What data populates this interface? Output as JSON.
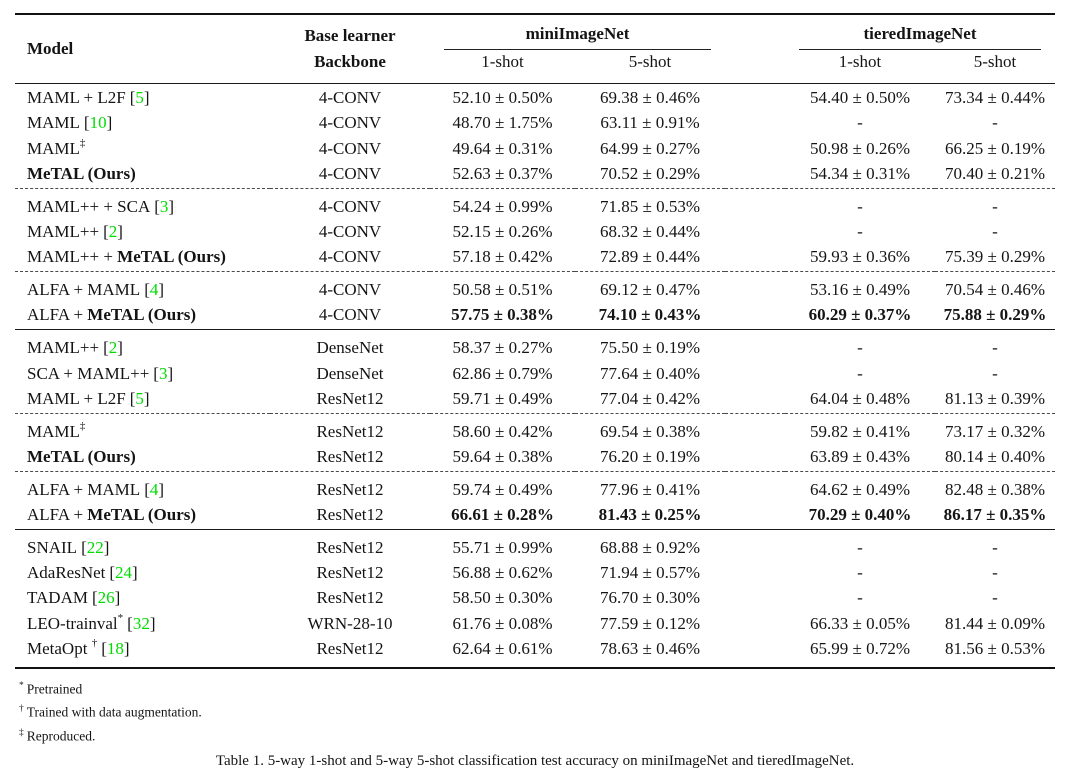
{
  "accent": {
    "citation_green": "#00dc00",
    "rule_color": "#111111"
  },
  "header": {
    "model": "Model",
    "base_learner_top": "Base learner",
    "base_learner_bottom": "Backbone",
    "groups": [
      {
        "label": "miniImageNet",
        "subcols": [
          "1-shot",
          "5-shot"
        ]
      },
      {
        "label": "tieredImageNet",
        "subcols": [
          "1-shot",
          "5-shot"
        ]
      }
    ]
  },
  "sections": [
    {
      "blocks": [
        {
          "rows": [
            {
              "plain": "MAML + L2F",
              "bold": "",
              "sup": "",
              "cite": "5",
              "backbone": "4-CONV",
              "values": [
                "52.10 ± 0.50%",
                "69.38 ± 0.46%",
                "54.40 ± 0.50%",
                "73.34 ± 0.44%"
              ],
              "bold_values": false
            },
            {
              "plain": "MAML",
              "bold": "",
              "sup": "",
              "cite": "10",
              "backbone": "4-CONV",
              "values": [
                "48.70 ± 1.75%",
                "63.11 ± 0.91%",
                "-",
                "-"
              ],
              "bold_values": false
            },
            {
              "plain": "MAML",
              "bold": "",
              "sup": "‡",
              "cite": "",
              "backbone": "4-CONV",
              "values": [
                "49.64 ± 0.31%",
                "64.99 ± 0.27%",
                "50.98 ± 0.26%",
                "66.25 ± 0.19%"
              ],
              "bold_values": false
            },
            {
              "plain": "",
              "bold": "MeTAL (Ours)",
              "sup": "",
              "cite": "",
              "backbone": "4-CONV",
              "values": [
                "52.63 ± 0.37%",
                "70.52 ± 0.29%",
                "54.34 ± 0.31%",
                "70.40 ± 0.21%"
              ],
              "bold_values": false
            }
          ]
        },
        {
          "rows": [
            {
              "plain": "MAML++ + SCA",
              "bold": "",
              "sup": "",
              "cite": "3",
              "backbone": "4-CONV",
              "values": [
                "54.24 ± 0.99%",
                "71.85 ± 0.53%",
                "-",
                "-"
              ],
              "bold_values": false
            },
            {
              "plain": "MAML++",
              "bold": "",
              "sup": "",
              "cite": "2",
              "backbone": "4-CONV",
              "values": [
                "52.15 ± 0.26%",
                "68.32 ± 0.44%",
                "-",
                "-"
              ],
              "bold_values": false
            },
            {
              "plain": "MAML++ + ",
              "bold": "MeTAL (Ours)",
              "sup": "",
              "cite": "",
              "backbone": "4-CONV",
              "values": [
                "57.18 ± 0.42%",
                "72.89 ± 0.44%",
                "59.93 ± 0.36%",
                "75.39 ± 0.29%"
              ],
              "bold_values": false
            }
          ]
        },
        {
          "rows": [
            {
              "plain": "ALFA + MAML",
              "bold": "",
              "sup": "",
              "cite": "4",
              "backbone": "4-CONV",
              "values": [
                "50.58 ± 0.51%",
                "69.12 ± 0.47%",
                "53.16 ± 0.49%",
                "70.54 ± 0.46%"
              ],
              "bold_values": false
            },
            {
              "plain": "ALFA + ",
              "bold": "MeTAL (Ours)",
              "sup": "",
              "cite": "",
              "backbone": "4-CONV",
              "values": [
                "57.75 ± 0.38%",
                "74.10 ± 0.43%",
                "60.29 ± 0.37%",
                "75.88 ± 0.29%"
              ],
              "bold_values": true
            }
          ]
        }
      ]
    },
    {
      "blocks": [
        {
          "rows": [
            {
              "plain": "MAML++",
              "bold": "",
              "sup": "",
              "cite": "2",
              "backbone": "DenseNet",
              "values": [
                "58.37 ± 0.27%",
                "75.50 ± 0.19%",
                "-",
                "-"
              ],
              "bold_values": false
            },
            {
              "plain": "SCA + MAML++",
              "bold": "",
              "sup": "",
              "cite": "3",
              "backbone": "DenseNet",
              "values": [
                "62.86 ± 0.79%",
                "77.64 ± 0.40%",
                "-",
                "-"
              ],
              "bold_values": false
            },
            {
              "plain": "MAML + L2F",
              "bold": "",
              "sup": "",
              "cite": "5",
              "backbone": "ResNet12",
              "values": [
                "59.71 ± 0.49%",
                "77.04 ± 0.42%",
                "64.04 ± 0.48%",
                "81.13 ± 0.39%"
              ],
              "bold_values": false
            }
          ]
        },
        {
          "rows": [
            {
              "plain": "MAML",
              "bold": "",
              "sup": "‡",
              "cite": "",
              "backbone": "ResNet12",
              "values": [
                "58.60 ± 0.42%",
                "69.54 ± 0.38%",
                "59.82 ± 0.41%",
                "73.17 ± 0.32%"
              ],
              "bold_values": false
            },
            {
              "plain": "",
              "bold": "MeTAL (Ours)",
              "sup": "",
              "cite": "",
              "backbone": "ResNet12",
              "values": [
                "59.64 ± 0.38%",
                "76.20 ± 0.19%",
                "63.89 ± 0.43%",
                "80.14 ± 0.40%"
              ],
              "bold_values": false
            }
          ]
        },
        {
          "rows": [
            {
              "plain": "ALFA + MAML",
              "bold": "",
              "sup": "",
              "cite": "4",
              "backbone": "ResNet12",
              "values": [
                "59.74 ± 0.49%",
                "77.96 ± 0.41%",
                "64.62 ± 0.49%",
                "82.48 ± 0.38%"
              ],
              "bold_values": false
            },
            {
              "plain": "ALFA + ",
              "bold": "MeTAL (Ours)",
              "sup": "",
              "cite": "",
              "backbone": "ResNet12",
              "values": [
                "66.61 ± 0.28%",
                "81.43 ± 0.25%",
                "70.29 ± 0.40%",
                "86.17 ± 0.35%"
              ],
              "bold_values": true
            }
          ]
        }
      ]
    },
    {
      "blocks": [
        {
          "rows": [
            {
              "plain": "SNAIL",
              "bold": "",
              "sup": "",
              "cite": "22",
              "backbone": "ResNet12",
              "values": [
                "55.71 ± 0.99%",
                "68.88 ± 0.92%",
                "-",
                "-"
              ],
              "bold_values": false
            },
            {
              "plain": "AdaResNet",
              "bold": "",
              "sup": "",
              "cite": "24",
              "backbone": "ResNet12",
              "values": [
                "56.88 ± 0.62%",
                "71.94 ± 0.57%",
                "-",
                "-"
              ],
              "bold_values": false
            },
            {
              "plain": "TADAM",
              "bold": "",
              "sup": "",
              "cite": "26",
              "backbone": "ResNet12",
              "values": [
                "58.50 ± 0.30%",
                "76.70 ± 0.30%",
                "-",
                "-"
              ],
              "bold_values": false
            },
            {
              "plain": "LEO-trainval",
              "bold": "",
              "sup": "*",
              "cite": "32",
              "backbone": "WRN-28-10",
              "values": [
                "61.76 ± 0.08%",
                "77.59 ± 0.12%",
                "66.33 ± 0.05%",
                "81.44 ± 0.09%"
              ],
              "bold_values": false
            },
            {
              "plain": "MetaOpt ",
              "bold": "",
              "sup": "†",
              "cite": "18",
              "backbone": "ResNet12",
              "values": [
                "62.64 ± 0.61%",
                "78.63 ± 0.46%",
                "65.99 ± 0.72%",
                "81.56 ± 0.53%"
              ],
              "bold_values": false
            }
          ]
        }
      ]
    }
  ],
  "footnotes": [
    {
      "marker": "*",
      "text": "Pretrained"
    },
    {
      "marker": "†",
      "text": "Trained with data augmentation."
    },
    {
      "marker": "‡",
      "text": "Reproduced."
    }
  ],
  "caption": "Table 1. 5-way 1-shot and 5-way 5-shot classification test accuracy on miniImageNet and tieredImageNet."
}
